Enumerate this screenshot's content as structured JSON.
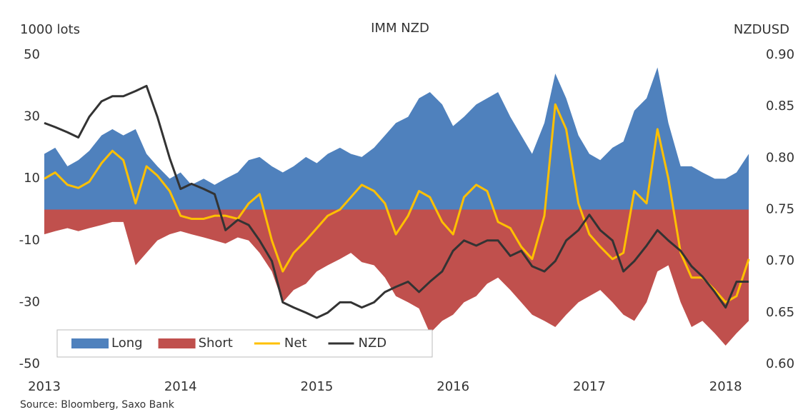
{
  "chart_data": {
    "type": "area-line",
    "title": "IMM NZD",
    "y_label": "1000 lots",
    "y2_label": "NZDUSD",
    "source": "Source: Bloomberg, Saxo Bank",
    "x": [
      2013,
      2013.08,
      2013.17,
      2013.25,
      2013.33,
      2013.42,
      2013.5,
      2013.58,
      2013.67,
      2013.75,
      2013.83,
      2013.92,
      2014,
      2014.08,
      2014.17,
      2014.25,
      2014.33,
      2014.42,
      2014.5,
      2014.58,
      2014.67,
      2014.75,
      2014.83,
      2014.92,
      2015,
      2015.08,
      2015.17,
      2015.25,
      2015.33,
      2015.42,
      2015.5,
      2015.58,
      2015.67,
      2015.75,
      2015.83,
      2015.92,
      2016,
      2016.08,
      2016.17,
      2016.25,
      2016.33,
      2016.42,
      2016.5,
      2016.58,
      2016.67,
      2016.75,
      2016.83,
      2016.92,
      2017,
      2017.08,
      2017.17,
      2017.25,
      2017.33,
      2017.42,
      2017.5,
      2017.58,
      2017.67,
      2017.75,
      2017.83,
      2017.92,
      2018,
      2018.08,
      2018.17
    ],
    "xlim": [
      2013,
      2018.18
    ],
    "xticks": [
      2013,
      2014,
      2015,
      2016,
      2017,
      2018
    ],
    "ylim": [
      -50,
      50
    ],
    "yticks": [
      -50,
      -30,
      -10,
      10,
      30,
      50
    ],
    "y2lim": [
      0.6,
      0.9
    ],
    "y2ticks": [
      {
        "value": 0.6,
        "label": "0.60"
      },
      0.65,
      {
        "value": 0.7,
        "label": "0.70"
      },
      0.75,
      {
        "value": 0.8,
        "label": "0.80"
      },
      0.85,
      {
        "value": 0.9,
        "label": "0.90"
      }
    ],
    "legend": "lower left",
    "series": [
      {
        "name": "Long",
        "kind": "area",
        "color": "#4f81bd",
        "values": [
          18,
          20,
          14,
          16,
          19,
          24,
          26,
          24,
          26,
          18,
          14,
          10,
          12,
          8,
          10,
          8,
          10,
          12,
          16,
          17,
          14,
          12,
          14,
          17,
          15,
          18,
          20,
          18,
          17,
          20,
          24,
          28,
          30,
          36,
          38,
          34,
          27,
          30,
          34,
          36,
          38,
          30,
          24,
          18,
          28,
          44,
          36,
          24,
          18,
          16,
          20,
          22,
          32,
          36,
          46,
          28,
          14,
          14,
          12,
          10,
          10,
          12,
          18
        ]
      },
      {
        "name": "Short",
        "kind": "area",
        "color": "#c0504d",
        "values": [
          -8,
          -7,
          -6,
          -7,
          -6,
          -5,
          -4,
          -4,
          -18,
          -14,
          -10,
          -8,
          -7,
          -8,
          -9,
          -10,
          -11,
          -9,
          -10,
          -14,
          -20,
          -30,
          -26,
          -24,
          -20,
          -18,
          -16,
          -14,
          -17,
          -18,
          -22,
          -28,
          -30,
          -32,
          -40,
          -36,
          -34,
          -30,
          -28,
          -24,
          -22,
          -26,
          -30,
          -34,
          -36,
          -38,
          -34,
          -30,
          -28,
          -26,
          -30,
          -34,
          -36,
          -30,
          -20,
          -18,
          -30,
          -38,
          -36,
          -40,
          -44,
          -40,
          -36
        ]
      },
      {
        "name": "Net",
        "kind": "line",
        "color": "#ffc000",
        "values": [
          10,
          12,
          8,
          7,
          9,
          15,
          19,
          16,
          2,
          14,
          11,
          6,
          -2,
          -3,
          -3,
          -2,
          -2,
          -3,
          2,
          5,
          -10,
          -20,
          -14,
          -10,
          -6,
          -2,
          0,
          4,
          8,
          6,
          2,
          -8,
          -2,
          6,
          4,
          -4,
          -8,
          4,
          8,
          6,
          -4,
          -6,
          -12,
          -16,
          -2,
          34,
          26,
          2,
          -8,
          -12,
          -16,
          -14,
          6,
          2,
          26,
          10,
          -14,
          -22,
          -22,
          -26,
          -30,
          -28,
          -16
        ]
      },
      {
        "name": "NZD",
        "kind": "line",
        "axis": "y2",
        "color": "#333333",
        "values": [
          0.834,
          0.83,
          0.825,
          0.82,
          0.84,
          0.855,
          0.86,
          0.86,
          0.865,
          0.87,
          0.84,
          0.8,
          0.77,
          0.775,
          0.77,
          0.765,
          0.73,
          0.74,
          0.735,
          0.72,
          0.7,
          0.66,
          0.655,
          0.65,
          0.645,
          0.65,
          0.66,
          0.66,
          0.655,
          0.66,
          0.67,
          0.675,
          0.68,
          0.67,
          0.68,
          0.69,
          0.71,
          0.72,
          0.715,
          0.72,
          0.72,
          0.705,
          0.71,
          0.695,
          0.69,
          0.7,
          0.72,
          0.73,
          0.745,
          0.73,
          0.72,
          0.69,
          0.7,
          0.715,
          0.73,
          0.72,
          0.71,
          0.695,
          0.685,
          0.67,
          0.655,
          0.68,
          0.68
        ]
      }
    ]
  }
}
